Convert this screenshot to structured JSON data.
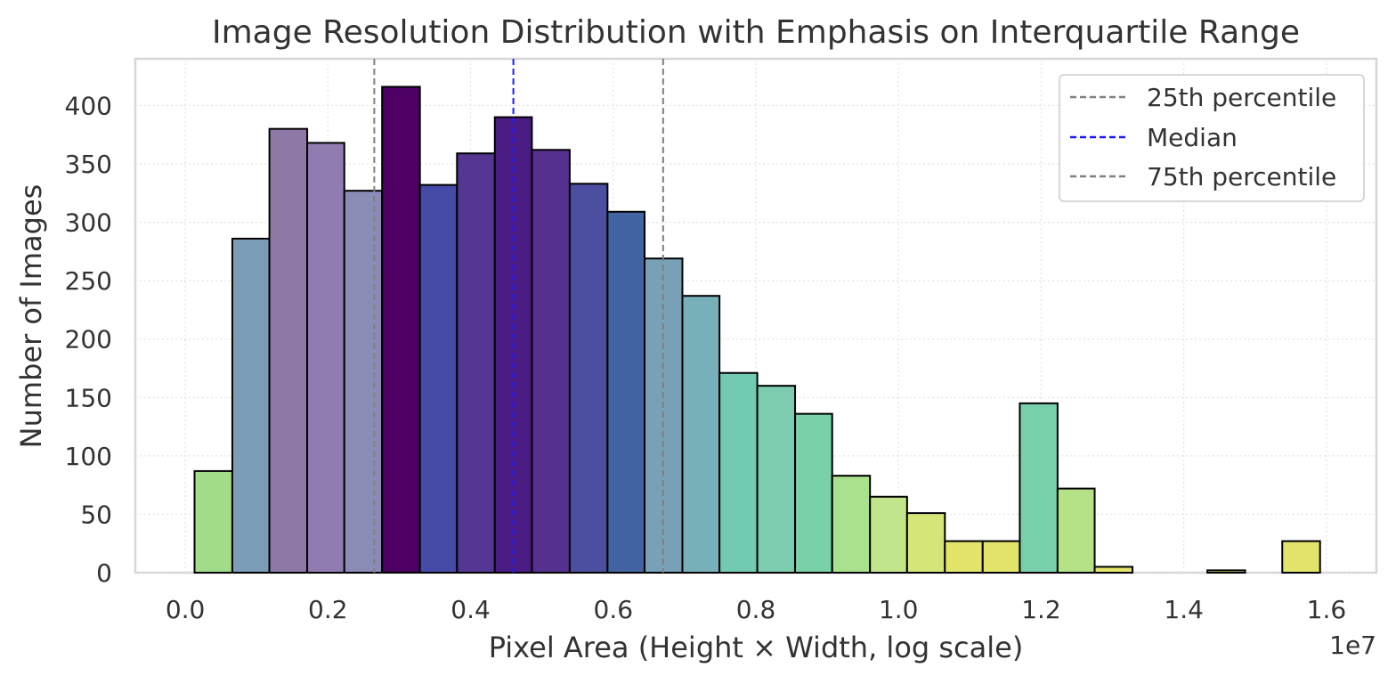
{
  "chart_data": {
    "type": "bar",
    "title": "Image Resolution Distribution with Emphasis on Interquartile Range",
    "xlabel": "Pixel Area (Height × Width, log scale)",
    "ylabel": "Number of Images",
    "x_offset_label": "1e7",
    "xlim": [
      -0.07,
      1.67
    ],
    "ylim": [
      0,
      440
    ],
    "x_ticks": [
      0.0,
      0.2,
      0.4,
      0.6,
      0.8,
      1.0,
      1.2,
      1.4,
      1.6
    ],
    "x_tick_labels": [
      "0.0",
      "0.2",
      "0.4",
      "0.6",
      "0.8",
      "1.0",
      "1.2",
      "1.4",
      "1.6"
    ],
    "y_ticks": [
      0,
      50,
      100,
      150,
      200,
      250,
      300,
      350,
      400
    ],
    "y_tick_labels": [
      "0",
      "50",
      "100",
      "150",
      "200",
      "250",
      "300",
      "350",
      "400"
    ],
    "grid": true,
    "bins": [
      {
        "x0": 0.013,
        "x1": 0.066,
        "value": 87,
        "color": "#a2dc8a"
      },
      {
        "x0": 0.066,
        "x1": 0.118,
        "value": 286,
        "color": "#7b9db8"
      },
      {
        "x0": 0.118,
        "x1": 0.171,
        "value": 380,
        "color": "#8e79a6"
      },
      {
        "x0": 0.171,
        "x1": 0.223,
        "value": 368,
        "color": "#907cb0"
      },
      {
        "x0": 0.223,
        "x1": 0.276,
        "value": 327,
        "color": "#8b8cb6"
      },
      {
        "x0": 0.276,
        "x1": 0.329,
        "value": 416,
        "color": "#4e0065"
      },
      {
        "x0": 0.329,
        "x1": 0.381,
        "value": 332,
        "color": "#454ba6"
      },
      {
        "x0": 0.381,
        "x1": 0.434,
        "value": 359,
        "color": "#553693"
      },
      {
        "x0": 0.434,
        "x1": 0.486,
        "value": 390,
        "color": "#4b1c84"
      },
      {
        "x0": 0.486,
        "x1": 0.539,
        "value": 362,
        "color": "#56308f"
      },
      {
        "x0": 0.539,
        "x1": 0.592,
        "value": 333,
        "color": "#4c4ea0"
      },
      {
        "x0": 0.592,
        "x1": 0.644,
        "value": 309,
        "color": "#4264a2"
      },
      {
        "x0": 0.644,
        "x1": 0.697,
        "value": 269,
        "color": "#78a0b6"
      },
      {
        "x0": 0.697,
        "x1": 0.749,
        "value": 237,
        "color": "#78b0ba"
      },
      {
        "x0": 0.749,
        "x1": 0.802,
        "value": 171,
        "color": "#72cab3"
      },
      {
        "x0": 0.802,
        "x1": 0.855,
        "value": 160,
        "color": "#7dccb0"
      },
      {
        "x0": 0.855,
        "x1": 0.907,
        "value": 136,
        "color": "#7ad0a8"
      },
      {
        "x0": 0.907,
        "x1": 0.96,
        "value": 83,
        "color": "#a9e18d"
      },
      {
        "x0": 0.96,
        "x1": 1.012,
        "value": 65,
        "color": "#c0e58a"
      },
      {
        "x0": 1.012,
        "x1": 1.065,
        "value": 51,
        "color": "#d5e578"
      },
      {
        "x0": 1.065,
        "x1": 1.118,
        "value": 27,
        "color": "#e3e56b"
      },
      {
        "x0": 1.118,
        "x1": 1.17,
        "value": 27,
        "color": "#e3e56b"
      },
      {
        "x0": 1.17,
        "x1": 1.223,
        "value": 145,
        "color": "#78d0ab"
      },
      {
        "x0": 1.223,
        "x1": 1.275,
        "value": 72,
        "color": "#b5e287"
      },
      {
        "x0": 1.275,
        "x1": 1.328,
        "value": 5,
        "color": "#e5e66a"
      },
      {
        "x0": 1.328,
        "x1": 1.381,
        "value": 0,
        "color": "#e5e66a"
      },
      {
        "x0": 1.381,
        "x1": 1.433,
        "value": 0,
        "color": "#e5e66a"
      },
      {
        "x0": 1.433,
        "x1": 1.486,
        "value": 2,
        "color": "#e5e66a"
      },
      {
        "x0": 1.486,
        "x1": 1.538,
        "value": 0,
        "color": "#e5e66a"
      },
      {
        "x0": 1.538,
        "x1": 1.591,
        "value": 27,
        "color": "#e3e56b"
      }
    ],
    "reference_lines": [
      {
        "name": "25th percentile",
        "x": 0.265,
        "color": "#808080"
      },
      {
        "name": "Median",
        "x": 0.46,
        "color": "#1a1aff"
      },
      {
        "name": "75th percentile",
        "x": 0.67,
        "color": "#808080"
      }
    ],
    "legend": {
      "position": "top-right",
      "entries": [
        "25th percentile",
        "Median",
        "75th percentile"
      ]
    }
  }
}
